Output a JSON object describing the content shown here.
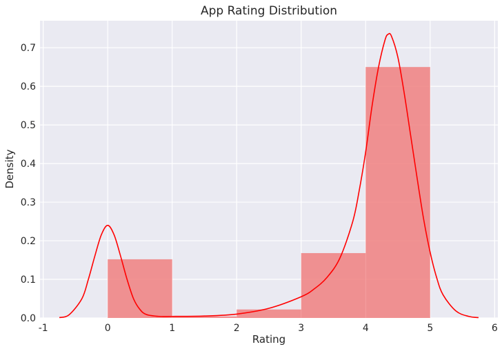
{
  "chart_data": {
    "type": "bar",
    "title": "App Rating Distribution",
    "xlabel": "Rating",
    "ylabel": "Density",
    "xlim": [
      -1.05,
      6.05
    ],
    "ylim": [
      0,
      0.77
    ],
    "xticks": [
      -1,
      0,
      1,
      2,
      3,
      4,
      5,
      6
    ],
    "yticks": [
      0.0,
      0.1,
      0.2,
      0.3,
      0.4,
      0.5,
      0.6,
      0.7
    ],
    "grid": true,
    "histogram": {
      "bin_edges": [
        0,
        1,
        2,
        3,
        4,
        5
      ],
      "values": [
        0.152,
        0.004,
        0.022,
        0.168,
        0.65
      ],
      "color": "#F08080"
    },
    "kde": {
      "color": "#FF0000",
      "x": [
        -0.75,
        -0.6,
        -0.4,
        -0.3,
        -0.2,
        -0.1,
        0.0,
        0.1,
        0.2,
        0.3,
        0.4,
        0.5,
        0.6,
        0.8,
        1.0,
        1.5,
        2.0,
        2.5,
        3.0,
        3.2,
        3.4,
        3.6,
        3.8,
        3.9,
        4.0,
        4.1,
        4.2,
        4.3,
        4.35,
        4.4,
        4.5,
        4.6,
        4.7,
        4.8,
        4.9,
        5.0,
        5.1,
        5.2,
        5.4,
        5.6,
        5.75
      ],
      "y": [
        0.001,
        0.008,
        0.05,
        0.1,
        0.16,
        0.215,
        0.24,
        0.215,
        0.16,
        0.1,
        0.05,
        0.022,
        0.009,
        0.004,
        0.004,
        0.005,
        0.01,
        0.025,
        0.055,
        0.075,
        0.105,
        0.155,
        0.25,
        0.33,
        0.43,
        0.55,
        0.65,
        0.72,
        0.735,
        0.73,
        0.675,
        0.58,
        0.47,
        0.36,
        0.255,
        0.17,
        0.105,
        0.06,
        0.018,
        0.004,
        0.001
      ]
    }
  }
}
